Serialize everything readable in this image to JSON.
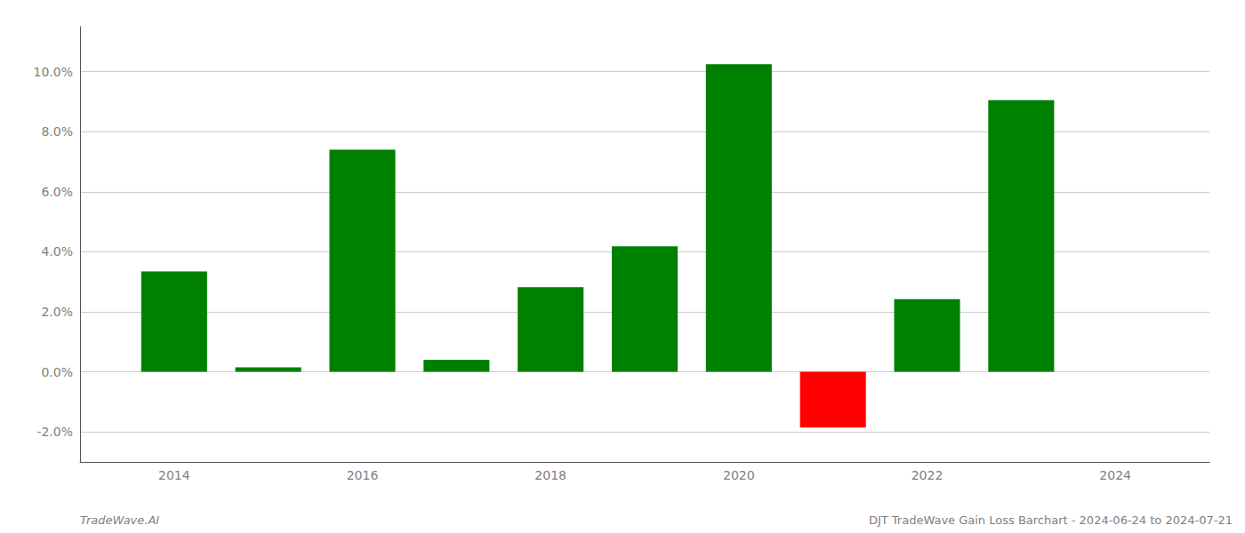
{
  "chart_data": {
    "type": "bar",
    "x": [
      2014,
      2015,
      2016,
      2017,
      2018,
      2019,
      2020,
      2021,
      2022,
      2023
    ],
    "values": [
      3.35,
      0.15,
      7.4,
      0.4,
      2.82,
      4.18,
      10.25,
      -1.85,
      2.42,
      9.05
    ],
    "colors": [
      "#008000",
      "#008000",
      "#008000",
      "#008000",
      "#008000",
      "#008000",
      "#008000",
      "#ff0000",
      "#008000",
      "#008000"
    ],
    "xlim": [
      2013.0,
      2025.0
    ],
    "xticks": [
      2014,
      2016,
      2018,
      2020,
      2022,
      2024
    ],
    "ylim": [
      -3.0,
      11.5
    ],
    "yticks": [
      {
        "value": -2.0,
        "label": "-2.0%"
      },
      {
        "value": 0.0,
        "label": "0.0%"
      },
      {
        "value": 2.0,
        "label": "2.0%"
      },
      {
        "value": 4.0,
        "label": "4.0%"
      },
      {
        "value": 6.0,
        "label": "6.0%"
      },
      {
        "value": 8.0,
        "label": "8.0%"
      },
      {
        "value": 10.0,
        "label": "10.0%"
      }
    ],
    "grid": true,
    "annotations": [
      "TradeWave.AI",
      "DJT TradeWave Gain Loss Barchart - 2024-06-24 to 2024-07-21"
    ]
  }
}
